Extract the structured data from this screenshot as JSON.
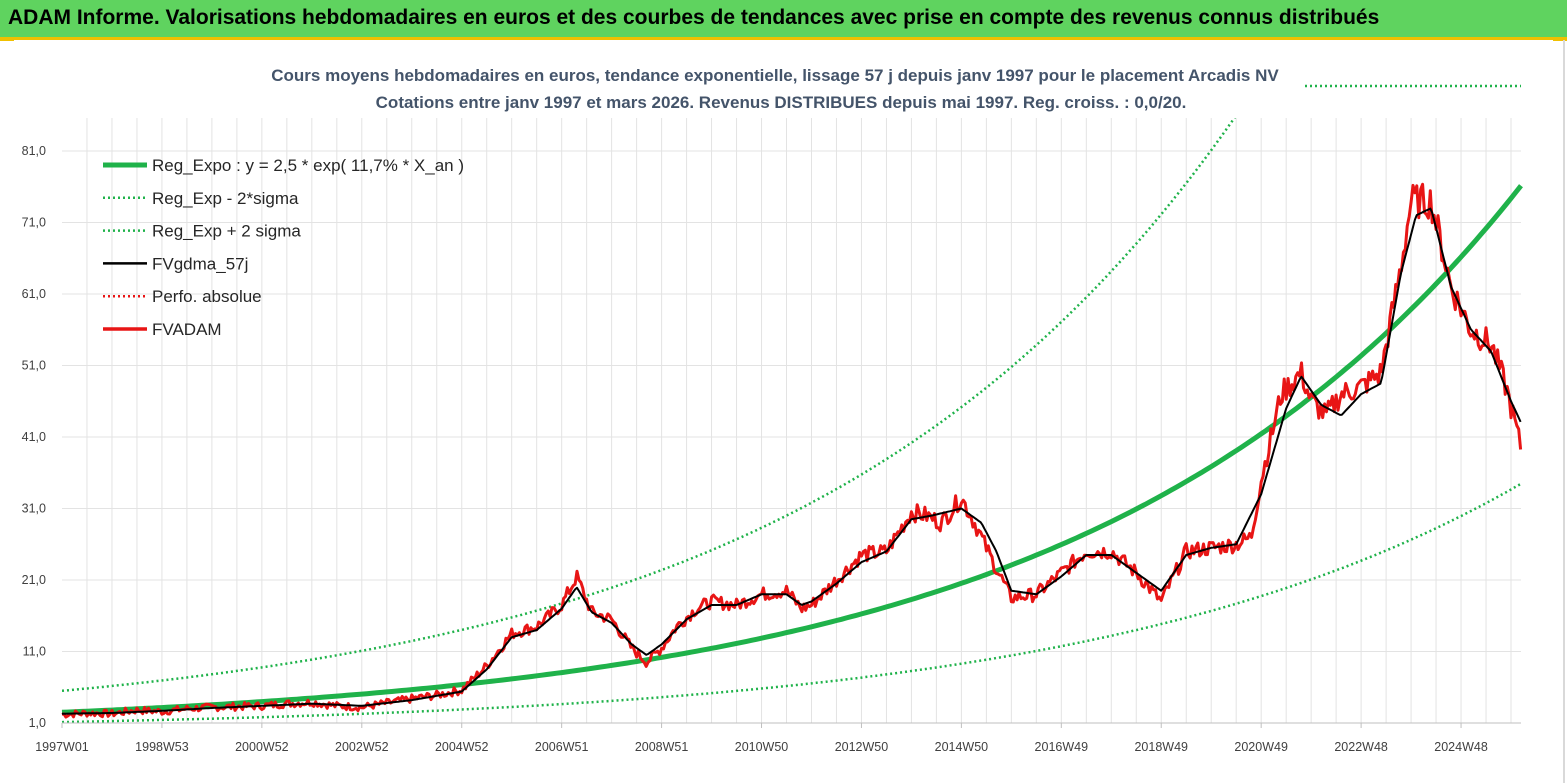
{
  "header": {
    "title": "ADAM Informe. Valorisations hebdomadaires en euros et des courbes de tendances avec prise en compte des revenus connus distribués"
  },
  "chart_data": {
    "type": "line",
    "title_line1": "Cours moyens hebdomadaires en euros, tendance exponentielle, lissage 57 j depuis janv 1997 pour le placement Arcadis NV",
    "title_line2": "Cotations entre janv 1997 et mars 2026. Revenus DISTRIBUES depuis mai 1997. Reg. croiss. : 0,0/20.",
    "ylim": [
      1,
      86
    ],
    "xlim": [
      1997.0,
      2026.2
    ],
    "y_ticks": [
      "1,0",
      "11,0",
      "21,0",
      "31,0",
      "41,0",
      "51,0",
      "61,0",
      "71,0",
      "81,0"
    ],
    "y_tick_values": [
      1,
      11,
      21,
      31,
      41,
      51,
      61,
      71,
      81
    ],
    "x_ticks": [
      "1997W01",
      "1998W53",
      "2000W52",
      "2002W52",
      "2004W52",
      "2006W51",
      "2008W51",
      "2010W50",
      "2012W50",
      "2014W50",
      "2016W49",
      "2018W49",
      "2020W49",
      "2022W48",
      "2024W48"
    ],
    "x_tick_years": [
      1997.0,
      1999.0,
      2001.0,
      2003.0,
      2005.0,
      2007.0,
      2009.0,
      2011.0,
      2013.0,
      2015.0,
      2017.0,
      2019.0,
      2021.0,
      2023.0,
      2025.0
    ],
    "legend": [
      {
        "label": "Reg_Expo : y = 2,5 * exp( 11,7% *  X_an )",
        "color": "#1fb24a",
        "style": "solid-thick"
      },
      {
        "label": "Reg_Exp - 2*sigma",
        "color": "#1fb24a",
        "style": "dotted"
      },
      {
        "label": "Reg_Exp + 2 sigma",
        "color": "#1fb24a",
        "style": "dotted"
      },
      {
        "label": "FVgdma_57j",
        "color": "#000000",
        "style": "solid"
      },
      {
        "label": "Perfo. absolue",
        "color": "#e81515",
        "style": "dotted"
      },
      {
        "label": "FVADAM",
        "color": "#e81515",
        "style": "solid-thick"
      }
    ],
    "regression": {
      "a": 2.5,
      "rate": 0.117,
      "x0_year": 1997.0,
      "upper_factor": 2.2,
      "lower_factor": 0.4525
    },
    "series": [
      {
        "name": "FVADAM",
        "x": [
          1997.0,
          1997.5,
          1998.0,
          1998.5,
          1999.0,
          1999.5,
          2000.0,
          2000.5,
          2001.0,
          2001.5,
          2002.0,
          2002.5,
          2003.0,
          2003.5,
          2004.0,
          2004.5,
          2005.0,
          2005.5,
          2006.0,
          2006.5,
          2007.0,
          2007.3,
          2007.6,
          2008.0,
          2008.4,
          2008.7,
          2009.0,
          2009.3,
          2009.7,
          2010.0,
          2010.5,
          2011.0,
          2011.5,
          2011.8,
          2012.0,
          2012.5,
          2013.0,
          2013.5,
          2014.0,
          2014.3,
          2014.6,
          2015.0,
          2015.3,
          2015.6,
          2016.0,
          2016.5,
          2017.0,
          2017.5,
          2018.0,
          2018.5,
          2019.0,
          2019.5,
          2020.0,
          2020.5,
          2020.8,
          2021.0,
          2021.4,
          2021.8,
          2022.0,
          2022.3,
          2022.6,
          2023.0,
          2023.4,
          2023.8,
          2024.0,
          2024.4,
          2024.8,
          2025.2,
          2025.6,
          2025.9,
          2026.2
        ],
        "values": [
          2.2,
          2.4,
          2.3,
          2.8,
          2.6,
          3.0,
          3.2,
          3.3,
          3.4,
          3.7,
          3.9,
          3.4,
          3.2,
          3.8,
          4.4,
          4.9,
          5.6,
          9.0,
          13.5,
          14.5,
          17.5,
          21.5,
          16.5,
          15.5,
          11.5,
          9.5,
          11.5,
          14.5,
          17.0,
          18.0,
          17.5,
          19.0,
          19.5,
          17.0,
          17.5,
          21.0,
          24.5,
          25.0,
          30.5,
          30.0,
          29.0,
          32.5,
          28.5,
          24.0,
          18.5,
          19.0,
          22.0,
          25.0,
          25.0,
          22.0,
          18.0,
          25.0,
          25.5,
          26.0,
          27.0,
          35.0,
          47.0,
          50.0,
          46.0,
          44.0,
          47.0,
          48.0,
          50.0,
          65.0,
          74.0,
          74.0,
          62.0,
          56.0,
          54.0,
          48.0,
          39.5
        ]
      },
      {
        "name": "FVgdma_57j",
        "x": [
          1997.0,
          1998.0,
          1999.0,
          2000.0,
          2001.0,
          2002.0,
          2003.0,
          2004.0,
          2005.0,
          2005.5,
          2006.0,
          2006.5,
          2007.0,
          2007.3,
          2007.6,
          2008.0,
          2008.4,
          2008.7,
          2009.0,
          2009.5,
          2010.0,
          2010.5,
          2011.0,
          2011.5,
          2011.8,
          2012.0,
          2012.5,
          2013.0,
          2013.5,
          2014.0,
          2014.4,
          2015.0,
          2015.4,
          2015.7,
          2016.0,
          2016.5,
          2017.0,
          2017.5,
          2018.0,
          2018.5,
          2019.0,
          2019.5,
          2020.0,
          2020.5,
          2021.0,
          2021.5,
          2021.8,
          2022.2,
          2022.6,
          2023.0,
          2023.4,
          2023.8,
          2024.1,
          2024.4,
          2024.8,
          2025.2,
          2025.6,
          2026.0,
          2026.2
        ],
        "values": [
          2.3,
          2.4,
          2.7,
          3.1,
          3.4,
          3.7,
          3.4,
          4.2,
          5.4,
          8.5,
          13.0,
          14.0,
          17.0,
          20.0,
          16.5,
          15.0,
          12.0,
          10.5,
          12.0,
          15.5,
          17.5,
          17.5,
          19.0,
          19.0,
          17.5,
          18.0,
          20.5,
          23.5,
          25.0,
          29.5,
          30.0,
          31.0,
          29.0,
          25.0,
          19.5,
          19.0,
          21.5,
          24.5,
          24.5,
          22.0,
          19.5,
          24.5,
          25.5,
          26.0,
          33.0,
          45.0,
          49.5,
          45.5,
          44.0,
          47.0,
          48.5,
          64.0,
          72.0,
          73.0,
          62.0,
          56.0,
          53.0,
          46.0,
          43.0
        ]
      }
    ]
  }
}
